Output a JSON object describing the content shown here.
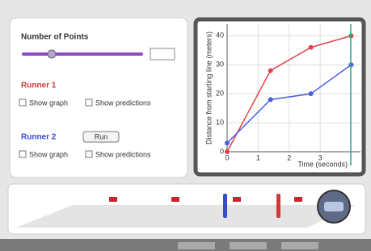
{
  "controls": {
    "points_label": "Number of Points",
    "run_button": "Run"
  },
  "runners": [
    {
      "title": "Runner 1",
      "options": [
        "Show graph",
        "Show predictions"
      ]
    },
    {
      "title": "Runner 2",
      "options": [
        "Show graph",
        "Show predictions"
      ]
    }
  ],
  "chart_data": {
    "type": "line",
    "x_label": "Time (seconds)",
    "y_label": "Distance from starting line (meters)",
    "x": [
      0,
      1.4,
      2.7,
      4
    ],
    "series": [
      {
        "name": "Runner 1",
        "color": "#e0454a",
        "values": [
          0,
          28,
          36,
          40
        ]
      },
      {
        "name": "Runner 2",
        "color": "#4a5ee0",
        "values": [
          3,
          18,
          20,
          30
        ]
      }
    ],
    "xlim": [
      0,
      4.3
    ],
    "ylim": [
      0,
      44
    ],
    "xticks": [
      0,
      1,
      2,
      3
    ],
    "yticks": [
      0,
      10,
      20,
      30,
      40
    ],
    "grid": true
  }
}
